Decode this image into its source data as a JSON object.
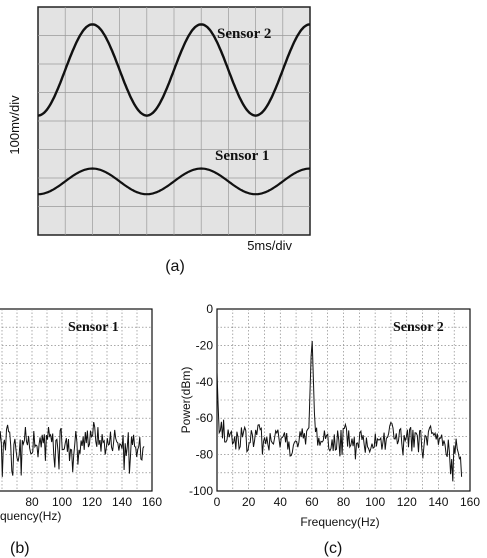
{
  "chart_data": [
    {
      "panel": "(a)",
      "type": "line",
      "ylabel": "100mv/div",
      "xlabel": "5ms/div",
      "grid": true,
      "series": [
        {
          "name": "Sensor 2",
          "x": [
            0,
            1,
            2,
            3,
            4,
            5,
            6,
            7,
            8,
            9,
            10
          ],
          "values": [
            0.0,
            2.1,
            3.2,
            1.9,
            0.0,
            2.1,
            3.2,
            1.9,
            0.0,
            2.1,
            3.2
          ]
        },
        {
          "name": "Sensor 1",
          "x": [
            0,
            1,
            2,
            3,
            4,
            5,
            6,
            7,
            8,
            9,
            10
          ],
          "values": [
            -2.6,
            -2.0,
            -1.7,
            -2.2,
            -2.6,
            -2.0,
            -1.7,
            -2.2,
            -2.6,
            -2.0,
            -1.7
          ]
        }
      ]
    },
    {
      "panel": "(b)",
      "type": "line",
      "xlabel": "Frequency(Hz)",
      "annotation": "Sensor 1",
      "xlim": [
        0,
        160
      ],
      "ylim": [
        -100,
        0
      ],
      "x_ticks": [
        "80",
        "100",
        "120",
        "140",
        "160"
      ],
      "grid": true,
      "series": [
        {
          "name": "Sensor 1",
          "x": [
            35,
            40,
            45,
            50,
            55,
            60,
            65,
            70,
            75,
            80,
            85,
            90,
            95,
            100,
            105,
            110,
            115,
            120,
            125,
            130,
            135,
            140,
            145,
            150,
            155
          ],
          "values": [
            -70,
            -75,
            -68,
            -80,
            -72,
            -74,
            -69,
            -78,
            -71,
            -73,
            -76,
            -70,
            -74,
            -72,
            -77,
            -71,
            -73,
            -66,
            -72,
            -74,
            -70,
            -76,
            -73,
            -78,
            -75
          ]
        }
      ]
    },
    {
      "panel": "(c)",
      "type": "line",
      "xlabel": "Frequency(Hz)",
      "ylabel": "Power(dBm)",
      "annotation": "Sensor 2",
      "xlim": [
        0,
        160
      ],
      "ylim": [
        -100,
        0
      ],
      "x_ticks": [
        "0",
        "20",
        "40",
        "60",
        "80",
        "100",
        "120",
        "140",
        "160"
      ],
      "y_ticks": [
        "0",
        "-20",
        "-40",
        "-60",
        "-80",
        "-100"
      ],
      "grid": true,
      "series": [
        {
          "name": "Sensor 2",
          "x": [
            0,
            1,
            5,
            10,
            15,
            20,
            25,
            30,
            35,
            40,
            45,
            50,
            55,
            58,
            60,
            62,
            65,
            70,
            75,
            80,
            85,
            90,
            95,
            100,
            105,
            110,
            115,
            120,
            125,
            130,
            135,
            140,
            145,
            150,
            155
          ],
          "values": [
            -35,
            -60,
            -68,
            -72,
            -70,
            -74,
            -68,
            -71,
            -75,
            -69,
            -73,
            -77,
            -70,
            -68,
            -12,
            -68,
            -72,
            -70,
            -74,
            -69,
            -73,
            -71,
            -75,
            -70,
            -72,
            -66,
            -71,
            -73,
            -70,
            -74,
            -69,
            -72,
            -76,
            -78,
            -74
          ]
        }
      ]
    }
  ],
  "labels": {
    "a": "(a)",
    "b": "(b)",
    "c": "(c)",
    "partial_xlabel_b": "quency(Hz)"
  }
}
